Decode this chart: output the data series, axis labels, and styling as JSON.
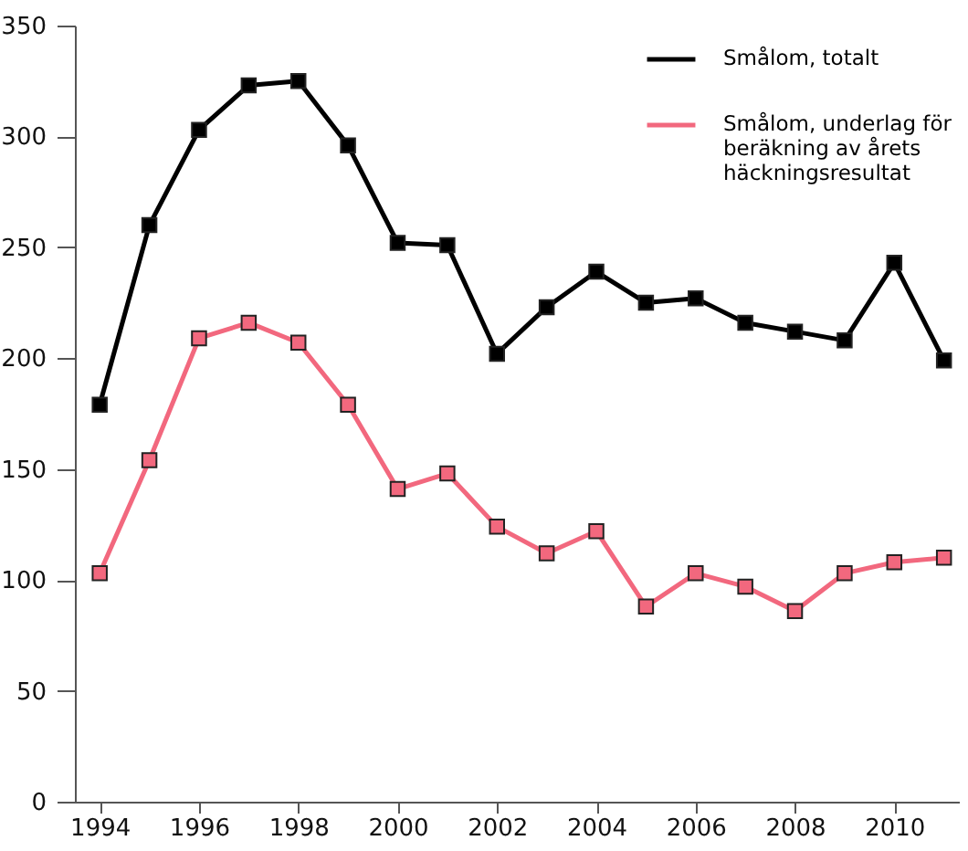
{
  "chart_data": {
    "type": "line",
    "x": [
      1994,
      1995,
      1996,
      1997,
      1998,
      1999,
      2000,
      2001,
      2002,
      2003,
      2004,
      2005,
      2006,
      2007,
      2008,
      2009,
      2010,
      2011
    ],
    "series": [
      {
        "name": "Smålom, totalt",
        "color": "#000000",
        "values": [
          179,
          260,
          303,
          323,
          325,
          296,
          252,
          251,
          202,
          223,
          239,
          225,
          227,
          216,
          212,
          208,
          243,
          199
        ]
      },
      {
        "name": "Smålom, underlag för beräkning av årets häckningsresultat",
        "color": "#f2687e",
        "values": [
          103,
          154,
          209,
          216,
          207,
          179,
          141,
          148,
          124,
          112,
          122,
          88,
          103,
          97,
          86,
          103,
          108,
          110
        ]
      }
    ],
    "xlim": [
      1993.5,
      2011.3
    ],
    "xticks": [
      1994,
      1996,
      1998,
      2000,
      2002,
      2004,
      2006,
      2008,
      2010
    ],
    "ylim": [
      0,
      350
    ],
    "yticks": [
      0,
      50,
      100,
      150,
      200,
      250,
      300,
      350
    ],
    "grid": false,
    "legend": "top right",
    "marker": "square",
    "line_style": "solid"
  }
}
